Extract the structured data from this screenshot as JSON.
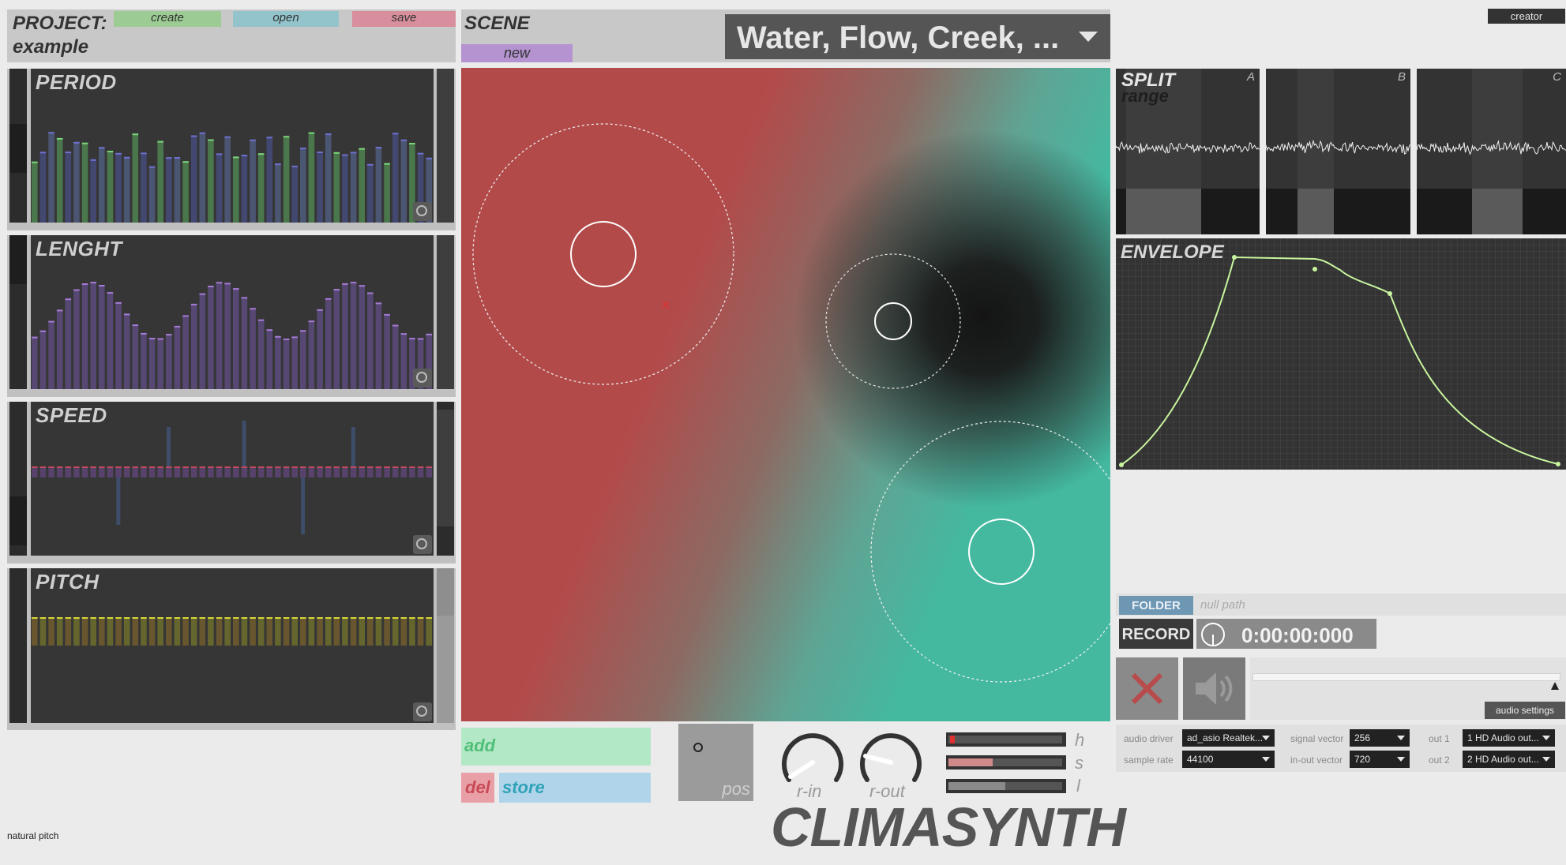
{
  "project": {
    "label": "PROJECT:",
    "name": "example",
    "create": "create",
    "open": "open",
    "save": "save"
  },
  "scene": {
    "label": "SCENE",
    "new": "new",
    "selected": "Water, Flow, Creek, ..."
  },
  "creator": "creator",
  "modulators": [
    {
      "title": "PERIOD"
    },
    {
      "title": "LENGHT"
    },
    {
      "title": "SPEED"
    },
    {
      "title": "PITCH"
    }
  ],
  "controls": {
    "add": "add",
    "del": "del",
    "store": "store",
    "pos": "pos",
    "r_in": "r-in",
    "r_out": "r-out",
    "h": "h",
    "s": "s",
    "l": "l"
  },
  "logo": "CLIMASYNTH",
  "status": "natural pitch",
  "split": {
    "title": "SPLIT",
    "subtitle": "range",
    "columns": [
      "A",
      "B",
      "C"
    ]
  },
  "envelope": {
    "title": "ENVELOPE"
  },
  "folder": {
    "label": "FOLDER",
    "path": "null path"
  },
  "record": {
    "label": "RECORD",
    "time": "0:00:00:000"
  },
  "audio_settings_button": "audio settings",
  "audio_settings": {
    "audio_driver_label": "audio driver",
    "audio_driver": "ad_asio Realtek...",
    "sample_rate_label": "sample rate",
    "sample_rate": "44100",
    "signal_vector_label": "signal vector",
    "signal_vector": "256",
    "inout_vector_label": "in-out vector",
    "inout_vector": "720",
    "out1_label": "out 1",
    "out1": "1 HD Audio out...",
    "out2_label": "out 2",
    "out2": "2 HD Audio out..."
  },
  "colors": {
    "create": "#9ccc93",
    "open": "#93c4cc",
    "save": "#d88e9c",
    "new": "#b493d0",
    "add": "#b3e8c6",
    "del": "#e99fa6",
    "store": "#b0d4ea",
    "red_zone": "#b34a4a",
    "teal_zone": "#44b9a0",
    "envelope_curve": "#c8f59e"
  }
}
